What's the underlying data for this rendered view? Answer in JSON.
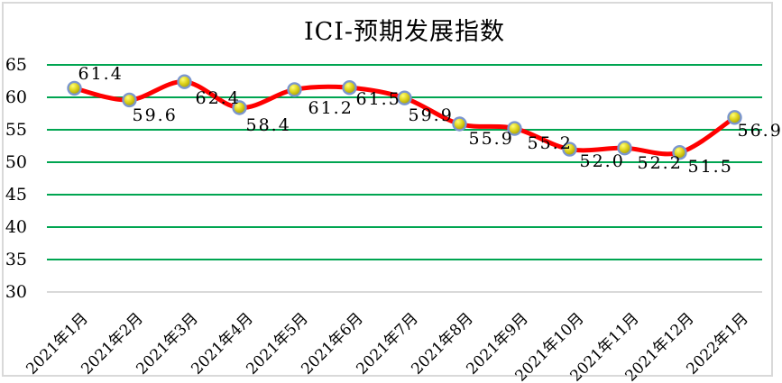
{
  "chart_frame": {
    "background": "#FFFFFF",
    "border_color": "#D9D9D9"
  },
  "chart_data": {
    "type": "line",
    "title": "ICI-预期发展指数",
    "categories": [
      "2021年1月",
      "2021年2月",
      "2021年3月",
      "2021年4月",
      "2021年5月",
      "2021年6月",
      "2021年7月",
      "2021年8月",
      "2021年9月",
      "2021年10月",
      "2021年11月",
      "2021年12月",
      "2022年1月"
    ],
    "series": [
      {
        "name": "ICI-预期发展指数",
        "values": [
          61.4,
          59.6,
          62.4,
          58.4,
          61.2,
          61.5,
          59.9,
          55.9,
          55.2,
          52.0,
          52.2,
          51.5,
          56.9
        ]
      }
    ],
    "data_labels": [
      "61.4",
      "59.6",
      "62.4",
      "58.4",
      "61.2",
      "61.5",
      "59.9",
      "55.9",
      "55.2",
      "52.0",
      "52.2",
      "51.5",
      "56.9"
    ],
    "xlabel": "",
    "ylabel": "",
    "ylim": [
      30,
      65
    ],
    "yticks": [
      65,
      60,
      55,
      50,
      45,
      40,
      35,
      30
    ],
    "grid": true,
    "legend": "none",
    "smooth_line": true,
    "x_label_rotation_deg": 45,
    "colors": {
      "line": "#FF0000",
      "marker_center": "#FFFF7A",
      "marker_mid": "#E0D51E",
      "marker_edge": "#9C9400",
      "marker_border": "#7B96CE",
      "gridline": "#00A551",
      "axis_line": "#D9D9D9",
      "text": "#000000"
    }
  }
}
